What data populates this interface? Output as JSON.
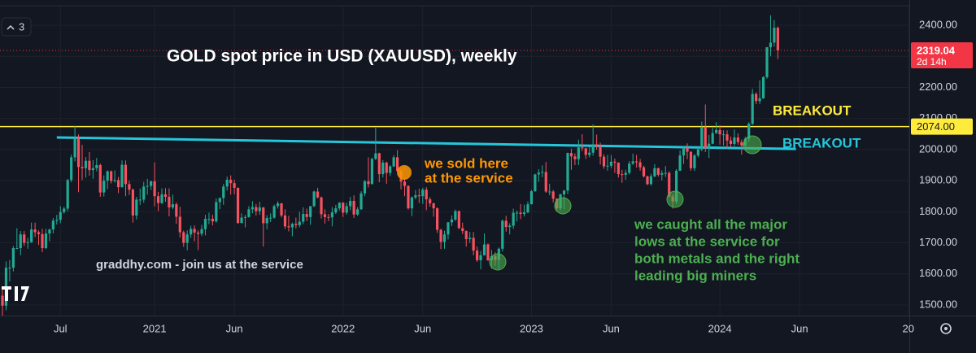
{
  "chart_data": {
    "type": "candlestick",
    "toolbar_count": "3",
    "up_color": "#22ab94",
    "down_color": "#f7525f",
    "ylim": [
      1460,
      2480
    ],
    "yticks": [
      {
        "value": 1500,
        "label": "1500.00"
      },
      {
        "value": 1600,
        "label": "1600.00"
      },
      {
        "value": 1700,
        "label": "1700.00"
      },
      {
        "value": 1800,
        "label": "1800.00"
      },
      {
        "value": 1900,
        "label": "1900.00"
      },
      {
        "value": 2000,
        "label": "2000.00"
      },
      {
        "value": 2100,
        "label": "2100.00"
      },
      {
        "value": 2200,
        "label": "2200.00"
      },
      {
        "value": 2300,
        "label": "2300.00"
      },
      {
        "value": 2400,
        "label": "2400.00"
      }
    ],
    "xticks": [
      {
        "value": 16,
        "label": "Jul"
      },
      {
        "value": 42,
        "label": "2021"
      },
      {
        "value": 64,
        "label": "Jun"
      },
      {
        "value": 94,
        "label": "2022"
      },
      {
        "value": 116,
        "label": "Jun"
      },
      {
        "value": 146,
        "label": "2023"
      },
      {
        "value": 168,
        "label": "Jun"
      },
      {
        "value": 198,
        "label": "2024"
      },
      {
        "value": 220,
        "label": "Jun"
      },
      {
        "value": 250,
        "label": "20"
      }
    ],
    "grid": true,
    "last_price": 2319.04,
    "last_price_color": "#f23645",
    "countdown": "2d 14h",
    "hline": {
      "value": 2074,
      "label": "2074.00",
      "color": "#ffeb3b"
    },
    "trendline": {
      "start": [
        15,
        2039
      ],
      "end": [
        219,
        2002
      ],
      "color": "#26c6da"
    },
    "annotations": [
      {
        "lines": [
          "GOLD spot price in USD (XAUUSD), weekly"
        ],
        "color": "#ffffff"
      },
      {
        "lines": [
          "BREAKOUT"
        ],
        "color": "#ffeb3b"
      },
      {
        "lines": [
          "BREAKOUT"
        ],
        "color": "#26c6da"
      },
      {
        "lines": [
          "we sold here",
          "at the service"
        ],
        "color": "#ff9800"
      },
      {
        "lines": [
          "we caught all the major",
          "lows at the service for",
          "both metals and the right",
          "leading big miners"
        ],
        "color": "#4caf50"
      },
      {
        "lines": [
          "graddhy.com - join us at the service"
        ],
        "color": "#d1d4dc"
      }
    ],
    "values": [
      [
        1530,
        1560,
        1451,
        1498
      ],
      [
        1498,
        1640,
        1483,
        1620
      ],
      [
        1620,
        1645,
        1576,
        1620
      ],
      [
        1620,
        1690,
        1608,
        1683
      ],
      [
        1683,
        1747,
        1680,
        1683
      ],
      [
        1683,
        1738,
        1660,
        1727
      ],
      [
        1727,
        1738,
        1690,
        1700
      ],
      [
        1700,
        1716,
        1681,
        1702
      ],
      [
        1702,
        1765,
        1700,
        1743
      ],
      [
        1743,
        1765,
        1718,
        1734
      ],
      [
        1734,
        1740,
        1693,
        1728
      ],
      [
        1728,
        1745,
        1670,
        1683
      ],
      [
        1683,
        1745,
        1680,
        1730
      ],
      [
        1730,
        1745,
        1705,
        1743
      ],
      [
        1743,
        1780,
        1730,
        1771
      ],
      [
        1771,
        1790,
        1759,
        1774
      ],
      [
        1774,
        1818,
        1763,
        1799
      ],
      [
        1799,
        1816,
        1794,
        1810
      ],
      [
        1810,
        1906,
        1802,
        1902
      ],
      [
        1902,
        1984,
        1895,
        1975
      ],
      [
        1975,
        2075,
        1962,
        2035
      ],
      [
        2035,
        2049,
        1863,
        1944
      ],
      [
        1944,
        2015,
        1902,
        1940
      ],
      [
        1940,
        1976,
        1910,
        1964
      ],
      [
        1964,
        1992,
        1916,
        1934
      ],
      [
        1934,
        1966,
        1906,
        1940
      ],
      [
        1940,
        1973,
        1930,
        1950
      ],
      [
        1950,
        1955,
        1848,
        1862
      ],
      [
        1862,
        1917,
        1849,
        1900
      ],
      [
        1900,
        1933,
        1873,
        1930
      ],
      [
        1930,
        1933,
        1891,
        1899
      ],
      [
        1899,
        1933,
        1894,
        1902
      ],
      [
        1902,
        1912,
        1860,
        1879
      ],
      [
        1879,
        1965,
        1878,
        1951
      ],
      [
        1951,
        1965,
        1850,
        1889
      ],
      [
        1889,
        1900,
        1854,
        1871
      ],
      [
        1871,
        1875,
        1765,
        1788
      ],
      [
        1788,
        1848,
        1775,
        1839
      ],
      [
        1839,
        1875,
        1822,
        1839
      ],
      [
        1839,
        1896,
        1829,
        1881
      ],
      [
        1881,
        1906,
        1855,
        1883
      ],
      [
        1883,
        1900,
        1870,
        1898
      ],
      [
        1898,
        1959,
        1817,
        1850
      ],
      [
        1850,
        1864,
        1802,
        1828
      ],
      [
        1828,
        1875,
        1825,
        1856
      ],
      [
        1856,
        1876,
        1832,
        1848
      ],
      [
        1848,
        1875,
        1785,
        1814
      ],
      [
        1814,
        1855,
        1808,
        1824
      ],
      [
        1824,
        1830,
        1761,
        1784
      ],
      [
        1784,
        1816,
        1717,
        1734
      ],
      [
        1734,
        1739,
        1687,
        1700
      ],
      [
        1700,
        1740,
        1676,
        1727
      ],
      [
        1727,
        1755,
        1716,
        1745
      ],
      [
        1745,
        1756,
        1705,
        1733
      ],
      [
        1733,
        1740,
        1677,
        1729
      ],
      [
        1729,
        1758,
        1722,
        1744
      ],
      [
        1744,
        1790,
        1724,
        1777
      ],
      [
        1777,
        1797,
        1760,
        1777
      ],
      [
        1777,
        1790,
        1756,
        1769
      ],
      [
        1769,
        1843,
        1765,
        1831
      ],
      [
        1831,
        1846,
        1808,
        1844
      ],
      [
        1844,
        1890,
        1822,
        1881
      ],
      [
        1881,
        1913,
        1868,
        1903
      ],
      [
        1903,
        1917,
        1855,
        1892
      ],
      [
        1892,
        1903,
        1856,
        1877
      ],
      [
        1877,
        1878,
        1761,
        1764
      ],
      [
        1764,
        1795,
        1762,
        1781
      ],
      [
        1781,
        1790,
        1750,
        1783
      ],
      [
        1783,
        1818,
        1781,
        1808
      ],
      [
        1808,
        1834,
        1795,
        1815
      ],
      [
        1815,
        1825,
        1788,
        1802
      ],
      [
        1802,
        1832,
        1790,
        1814
      ],
      [
        1814,
        1815,
        1688,
        1763
      ],
      [
        1763,
        1789,
        1744,
        1780
      ],
      [
        1780,
        1795,
        1767,
        1781
      ],
      [
        1781,
        1823,
        1778,
        1818
      ],
      [
        1818,
        1834,
        1810,
        1827
      ],
      [
        1827,
        1828,
        1782,
        1788
      ],
      [
        1788,
        1808,
        1745,
        1753
      ],
      [
        1753,
        1787,
        1737,
        1750
      ],
      [
        1750,
        1765,
        1721,
        1761
      ],
      [
        1761,
        1781,
        1746,
        1757
      ],
      [
        1757,
        1800,
        1750,
        1768
      ],
      [
        1768,
        1814,
        1760,
        1793
      ],
      [
        1793,
        1810,
        1770,
        1783
      ],
      [
        1783,
        1818,
        1758,
        1818
      ],
      [
        1818,
        1868,
        1815,
        1865
      ],
      [
        1865,
        1877,
        1843,
        1846
      ],
      [
        1846,
        1849,
        1778,
        1792
      ],
      [
        1792,
        1808,
        1762,
        1783
      ],
      [
        1783,
        1793,
        1770,
        1782
      ],
      [
        1782,
        1815,
        1753,
        1798
      ],
      [
        1798,
        1822,
        1793,
        1811
      ],
      [
        1811,
        1831,
        1804,
        1829
      ],
      [
        1829,
        1831,
        1783,
        1797
      ],
      [
        1797,
        1829,
        1791,
        1818
      ],
      [
        1818,
        1848,
        1805,
        1835
      ],
      [
        1835,
        1853,
        1780,
        1791
      ],
      [
        1791,
        1815,
        1787,
        1808
      ],
      [
        1808,
        1866,
        1806,
        1859
      ],
      [
        1859,
        1902,
        1850,
        1898
      ],
      [
        1898,
        1975,
        1878,
        1889
      ],
      [
        1889,
        1974,
        1888,
        1970
      ],
      [
        1970,
        2070,
        1966,
        1988
      ],
      [
        1988,
        1990,
        1895,
        1921
      ],
      [
        1921,
        1966,
        1910,
        1958
      ],
      [
        1958,
        1961,
        1890,
        1925
      ],
      [
        1925,
        1950,
        1915,
        1946
      ],
      [
        1946,
        1982,
        1943,
        1975
      ],
      [
        1975,
        1998,
        1931,
        1931
      ],
      [
        1931,
        1936,
        1872,
        1897
      ],
      [
        1897,
        1909,
        1850,
        1883
      ],
      [
        1883,
        1885,
        1807,
        1811
      ],
      [
        1811,
        1849,
        1786,
        1846
      ],
      [
        1846,
        1870,
        1840,
        1853
      ],
      [
        1853,
        1874,
        1828,
        1850
      ],
      [
        1850,
        1877,
        1825,
        1871
      ],
      [
        1871,
        1879,
        1805,
        1840
      ],
      [
        1840,
        1847,
        1816,
        1827
      ],
      [
        1827,
        1829,
        1784,
        1811
      ],
      [
        1811,
        1814,
        1732,
        1742
      ],
      [
        1742,
        1745,
        1680,
        1703
      ],
      [
        1703,
        1739,
        1681,
        1727
      ],
      [
        1727,
        1767,
        1711,
        1766
      ],
      [
        1766,
        1788,
        1754,
        1775
      ],
      [
        1775,
        1807,
        1770,
        1802
      ],
      [
        1802,
        1804,
        1745,
        1747
      ],
      [
        1747,
        1765,
        1728,
        1738
      ],
      [
        1738,
        1740,
        1688,
        1712
      ],
      [
        1712,
        1735,
        1700,
        1716
      ],
      [
        1716,
        1735,
        1660,
        1675
      ],
      [
        1675,
        1688,
        1639,
        1644
      ],
      [
        1644,
        1674,
        1615,
        1660
      ],
      [
        1660,
        1730,
        1659,
        1695
      ],
      [
        1695,
        1698,
        1642,
        1644
      ],
      [
        1644,
        1677,
        1617,
        1657
      ],
      [
        1657,
        1670,
        1626,
        1645
      ],
      [
        1645,
        1685,
        1616,
        1681
      ],
      [
        1681,
        1775,
        1672,
        1771
      ],
      [
        1771,
        1787,
        1736,
        1751
      ],
      [
        1751,
        1763,
        1727,
        1755
      ],
      [
        1755,
        1810,
        1745,
        1797
      ],
      [
        1797,
        1804,
        1769,
        1797
      ],
      [
        1797,
        1825,
        1776,
        1793
      ],
      [
        1793,
        1823,
        1785,
        1798
      ],
      [
        1798,
        1833,
        1795,
        1824
      ],
      [
        1824,
        1870,
        1824,
        1866
      ],
      [
        1866,
        1922,
        1864,
        1920
      ],
      [
        1920,
        1937,
        1896,
        1926
      ],
      [
        1926,
        1949,
        1911,
        1928
      ],
      [
        1928,
        1960,
        1861,
        1865
      ],
      [
        1865,
        1890,
        1853,
        1865
      ],
      [
        1865,
        1870,
        1830,
        1842
      ],
      [
        1842,
        1843,
        1804,
        1811
      ],
      [
        1811,
        1858,
        1804,
        1856
      ],
      [
        1856,
        1870,
        1809,
        1868
      ],
      [
        1868,
        1990,
        1857,
        1989
      ],
      [
        1989,
        2003,
        1935,
        1978
      ],
      [
        1978,
        1988,
        1950,
        1969
      ],
      [
        1969,
        2032,
        1950,
        2007
      ],
      [
        2007,
        2049,
        1995,
        2004
      ],
      [
        2004,
        2006,
        1970,
        1983
      ],
      [
        1983,
        2009,
        1975,
        1990
      ],
      [
        1990,
        2081,
        1980,
        2017
      ],
      [
        2017,
        2048,
        2000,
        2011
      ],
      [
        2011,
        2022,
        1952,
        1977
      ],
      [
        1977,
        1985,
        1938,
        1946
      ],
      [
        1946,
        1983,
        1932,
        1948
      ],
      [
        1948,
        1982,
        1940,
        1961
      ],
      [
        1961,
        1971,
        1925,
        1958
      ],
      [
        1958,
        1959,
        1910,
        1921
      ],
      [
        1921,
        1935,
        1893,
        1919
      ],
      [
        1919,
        1935,
        1903,
        1925
      ],
      [
        1925,
        1963,
        1920,
        1955
      ],
      [
        1955,
        1987,
        1950,
        1962
      ],
      [
        1962,
        1983,
        1942,
        1959
      ],
      [
        1959,
        1970,
        1932,
        1943
      ],
      [
        1943,
        1948,
        1910,
        1914
      ],
      [
        1914,
        1916,
        1885,
        1889
      ],
      [
        1889,
        1922,
        1884,
        1914
      ],
      [
        1914,
        1953,
        1911,
        1940
      ],
      [
        1940,
        1942,
        1913,
        1919
      ],
      [
        1919,
        1933,
        1901,
        1924
      ],
      [
        1924,
        1947,
        1912,
        1925
      ],
      [
        1925,
        1930,
        1847,
        1849
      ],
      [
        1849,
        1856,
        1810,
        1833
      ],
      [
        1833,
        1937,
        1824,
        1932
      ],
      [
        1932,
        1997,
        1931,
        1981
      ],
      [
        1981,
        2009,
        1954,
        2006
      ],
      [
        2006,
        2020,
        1969,
        1993
      ],
      [
        1993,
        1994,
        1932,
        1940
      ],
      [
        1940,
        1986,
        1931,
        1981
      ],
      [
        1981,
        2008,
        1975,
        2001
      ],
      [
        2001,
        2090,
        1995,
        2072
      ],
      [
        2072,
        2145,
        1992,
        2004
      ],
      [
        2004,
        2047,
        1973,
        2019
      ],
      [
        2019,
        2070,
        2017,
        2053
      ],
      [
        2053,
        2088,
        2051,
        2063
      ],
      [
        2063,
        2078,
        2016,
        2049
      ],
      [
        2049,
        2062,
        2013,
        2049
      ],
      [
        2049,
        2062,
        2002,
        2029
      ],
      [
        2029,
        2042,
        2005,
        2018
      ],
      [
        2018,
        2065,
        2011,
        2039
      ],
      [
        2039,
        2052,
        2015,
        2024
      ],
      [
        2024,
        2032,
        1984,
        2013
      ],
      [
        2013,
        2041,
        2009,
        2035
      ],
      [
        2035,
        2088,
        2024,
        2083
      ],
      [
        2083,
        2195,
        2079,
        2179
      ],
      [
        2179,
        2184,
        2146,
        2156
      ],
      [
        2156,
        2223,
        2146,
        2165
      ],
      [
        2165,
        2236,
        2163,
        2233
      ],
      [
        2233,
        2330,
        2228,
        2329
      ],
      [
        2329,
        2432,
        2300,
        2344
      ],
      [
        2344,
        2417,
        2331,
        2392
      ],
      [
        2392,
        2396,
        2291,
        2319
      ]
    ]
  }
}
